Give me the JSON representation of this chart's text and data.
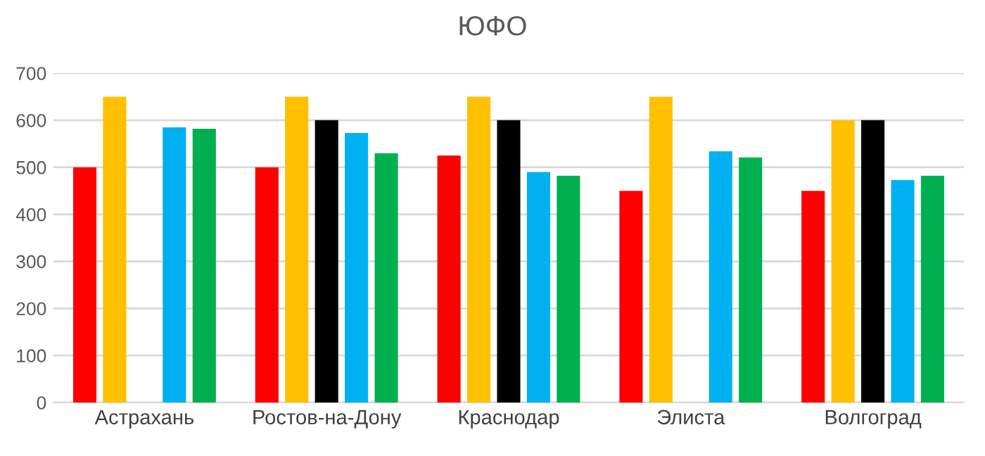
{
  "chart_data": {
    "type": "bar",
    "title": "ЮФО",
    "categories": [
      "Астрахань",
      "Ростов-на-Дону",
      "Краснодар",
      "Элиста",
      "Волгоград"
    ],
    "series": [
      {
        "color": "#ff0000",
        "values": [
          500,
          500,
          525,
          450,
          450
        ]
      },
      {
        "color": "#ffc000",
        "values": [
          650,
          650,
          650,
          650,
          600
        ]
      },
      {
        "color": "#000000",
        "values": [
          null,
          600,
          600,
          null,
          600
        ]
      },
      {
        "color": "#00b0f0",
        "values": [
          585,
          573,
          490,
          534,
          473
        ]
      },
      {
        "color": "#00b050",
        "values": [
          582,
          530,
          482,
          521,
          482
        ]
      }
    ],
    "ylim": [
      0,
      700
    ],
    "yticks": [
      0,
      100,
      200,
      300,
      400,
      500,
      600,
      700
    ],
    "grid": "y",
    "legend": false
  }
}
